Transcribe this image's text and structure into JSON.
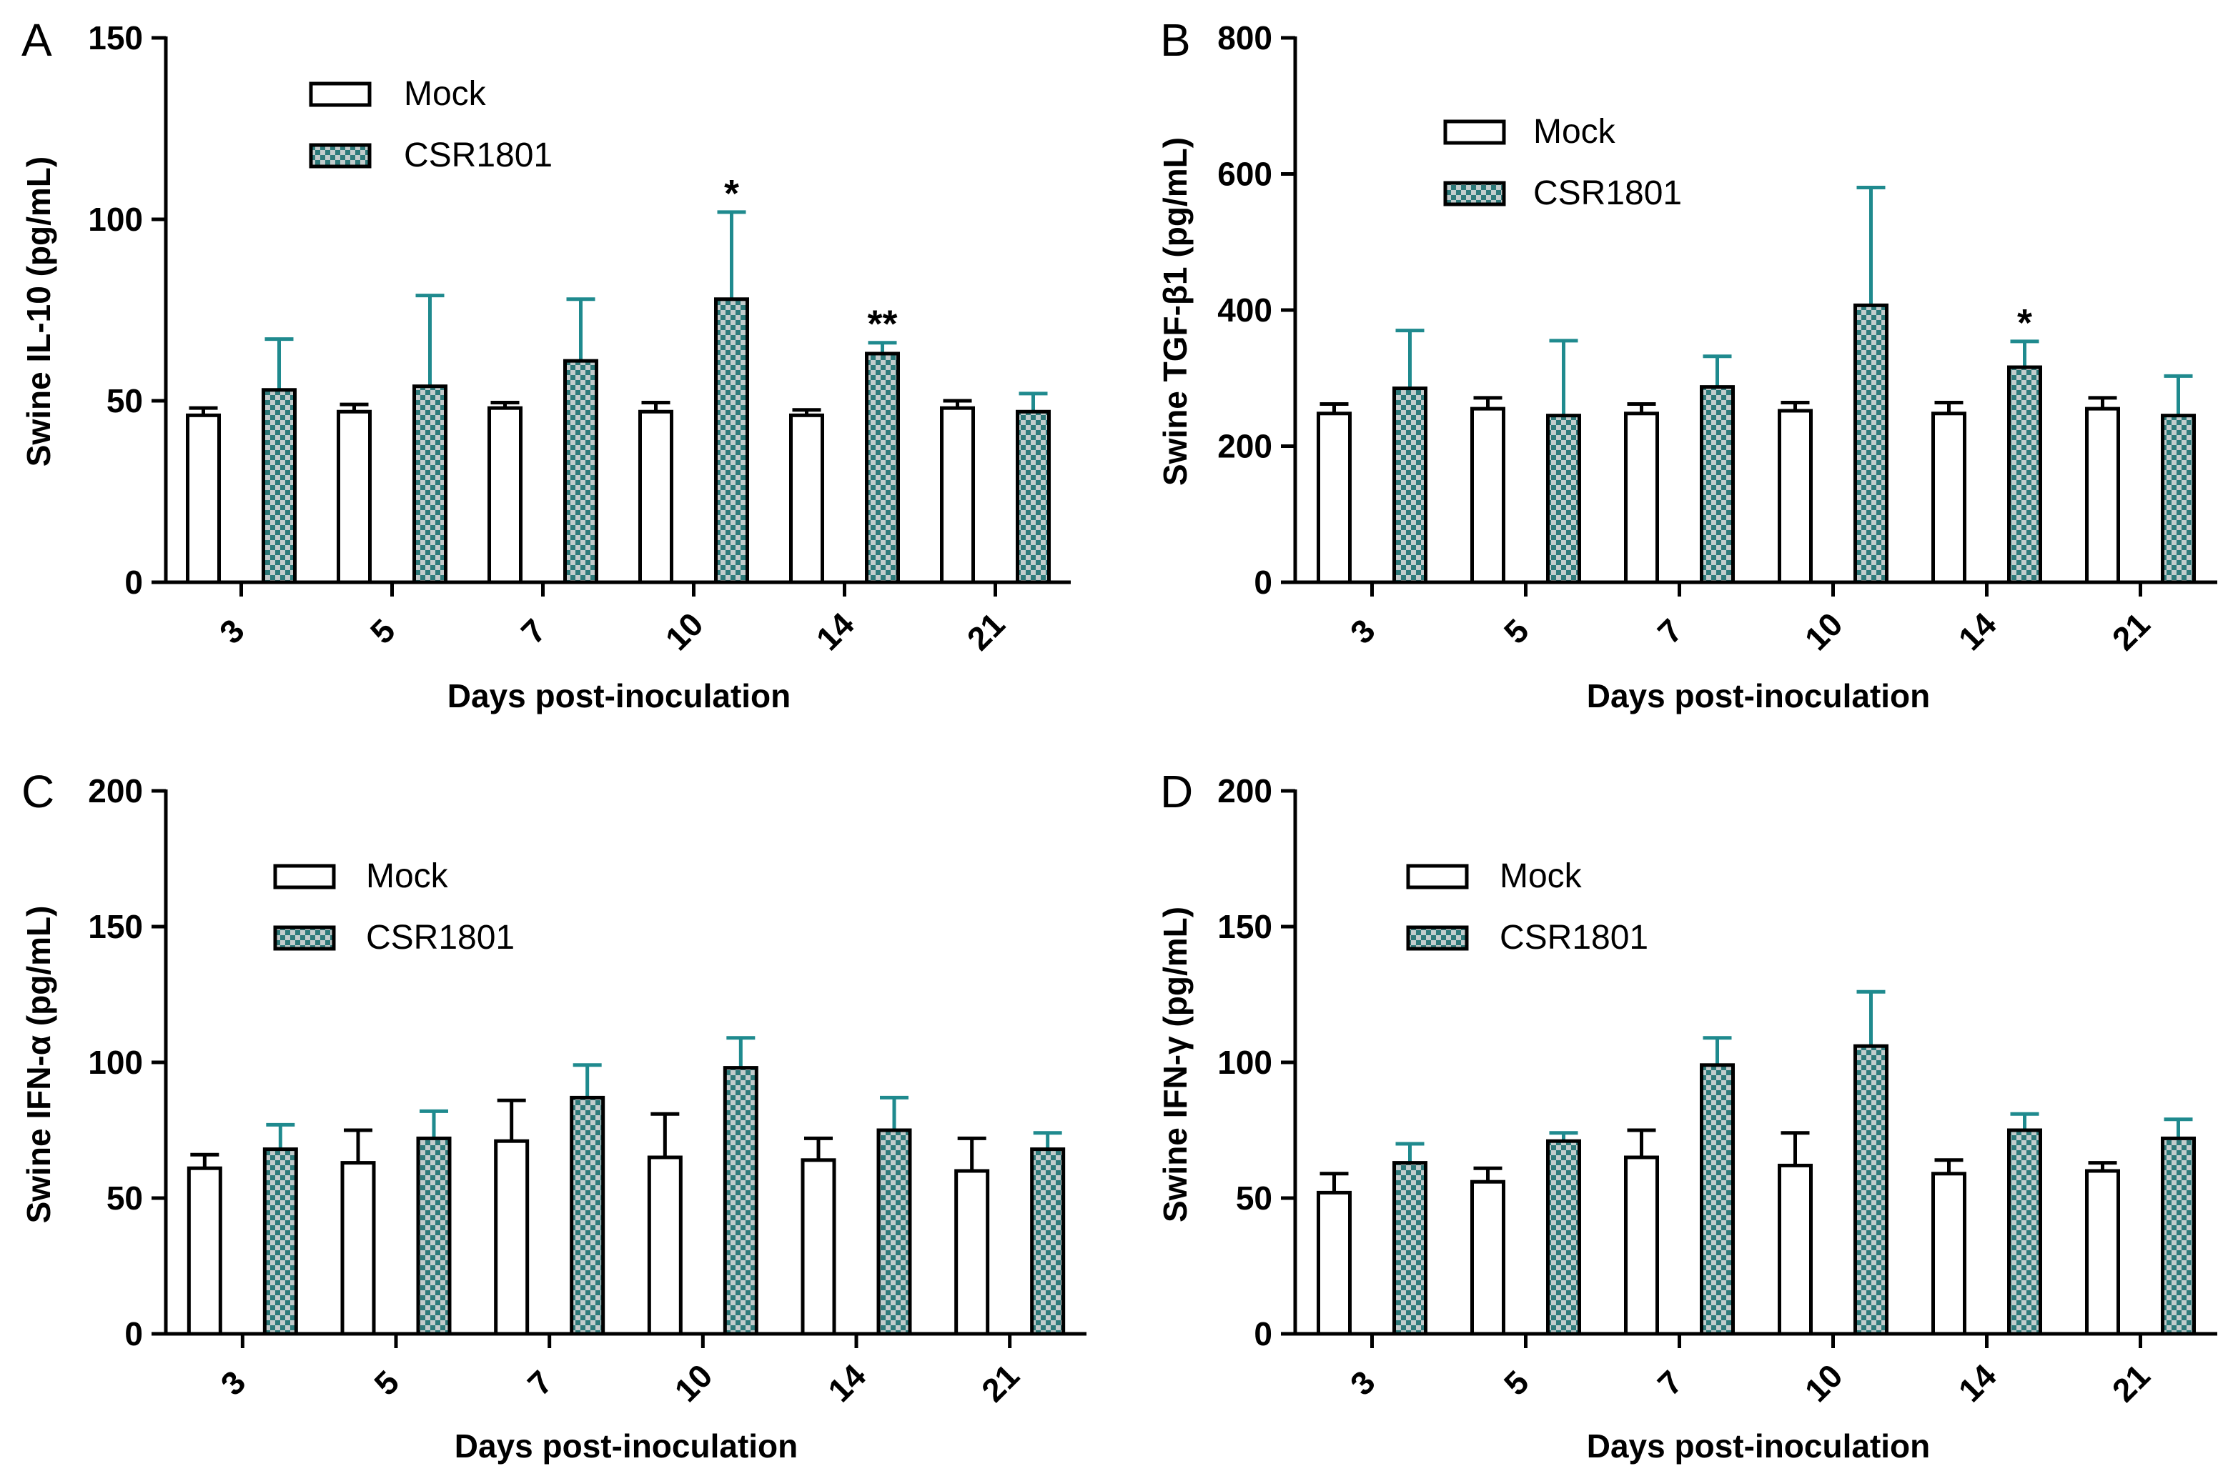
{
  "figure": {
    "colors": {
      "mock_fill": "#ffffff",
      "csr_fill": "#2e7a7a",
      "csr_check": "#c2cccc",
      "csr_err": "#1f8a8e",
      "axis": "#000000"
    },
    "legend_labels": [
      "Mock",
      "CSR1801"
    ]
  },
  "chart_data": [
    {
      "type": "bar",
      "panel": "A",
      "ylabel": "Swine IL-10 (pg/mL)",
      "xlabel": "Days post-inoculation",
      "ylim": [
        0,
        150
      ],
      "yticks": [
        0,
        50,
        100,
        150
      ],
      "categories": [
        "3",
        "5",
        "7",
        "10",
        "14",
        "21"
      ],
      "series": [
        {
          "name": "Mock",
          "values": [
            46,
            47,
            48,
            47,
            46,
            48
          ],
          "errors": [
            2,
            2,
            1.5,
            2.5,
            1.5,
            2
          ]
        },
        {
          "name": "CSR1801",
          "values": [
            53,
            54,
            61,
            78,
            63,
            47
          ],
          "errors": [
            14,
            25,
            17,
            24,
            3,
            5
          ]
        }
      ],
      "annotations": [
        {
          "category": "10",
          "text": "*"
        },
        {
          "category": "14",
          "text": "**"
        }
      ]
    },
    {
      "type": "bar",
      "panel": "B",
      "ylabel": "Swine TGF-β1 (pg/mL)",
      "xlabel": "Days post-inoculation",
      "ylim": [
        0,
        800
      ],
      "yticks": [
        0,
        200,
        400,
        600,
        800
      ],
      "categories": [
        "3",
        "5",
        "7",
        "10",
        "14",
        "21"
      ],
      "series": [
        {
          "name": "Mock",
          "values": [
            248,
            255,
            248,
            252,
            248,
            255
          ],
          "errors": [
            14,
            16,
            14,
            12,
            16,
            16
          ]
        },
        {
          "name": "CSR1801",
          "values": [
            285,
            245,
            287,
            407,
            316,
            245
          ],
          "errors": [
            85,
            110,
            45,
            173,
            38,
            58
          ]
        }
      ],
      "annotations": [
        {
          "category": "14",
          "text": "*"
        }
      ]
    },
    {
      "type": "bar",
      "panel": "C",
      "ylabel": "Swine IFN-α (pg/mL)",
      "xlabel": "Days post-inoculation",
      "ylim": [
        0,
        200
      ],
      "yticks": [
        0,
        50,
        100,
        150,
        200
      ],
      "categories": [
        "3",
        "5",
        "7",
        "10",
        "14",
        "21"
      ],
      "series": [
        {
          "name": "Mock",
          "values": [
            61,
            63,
            71,
            65,
            64,
            60
          ],
          "errors": [
            5,
            12,
            15,
            16,
            8,
            12
          ]
        },
        {
          "name": "CSR1801",
          "values": [
            68,
            72,
            87,
            98,
            75,
            68
          ],
          "errors": [
            9,
            10,
            12,
            11,
            12,
            6
          ]
        }
      ],
      "annotations": []
    },
    {
      "type": "bar",
      "panel": "D",
      "ylabel": "Swine IFN-γ (pg/mL)",
      "xlabel": "Days post-inoculation",
      "ylim": [
        0,
        200
      ],
      "yticks": [
        0,
        50,
        100,
        150,
        200
      ],
      "categories": [
        "3",
        "5",
        "7",
        "10",
        "14",
        "21"
      ],
      "series": [
        {
          "name": "Mock",
          "values": [
            52,
            56,
            65,
            62,
            59,
            60
          ],
          "errors": [
            7,
            5,
            10,
            12,
            5,
            3
          ]
        },
        {
          "name": "CSR1801",
          "values": [
            63,
            71,
            99,
            106,
            75,
            72
          ],
          "errors": [
            7,
            3,
            10,
            20,
            6,
            7
          ]
        }
      ],
      "annotations": []
    }
  ]
}
